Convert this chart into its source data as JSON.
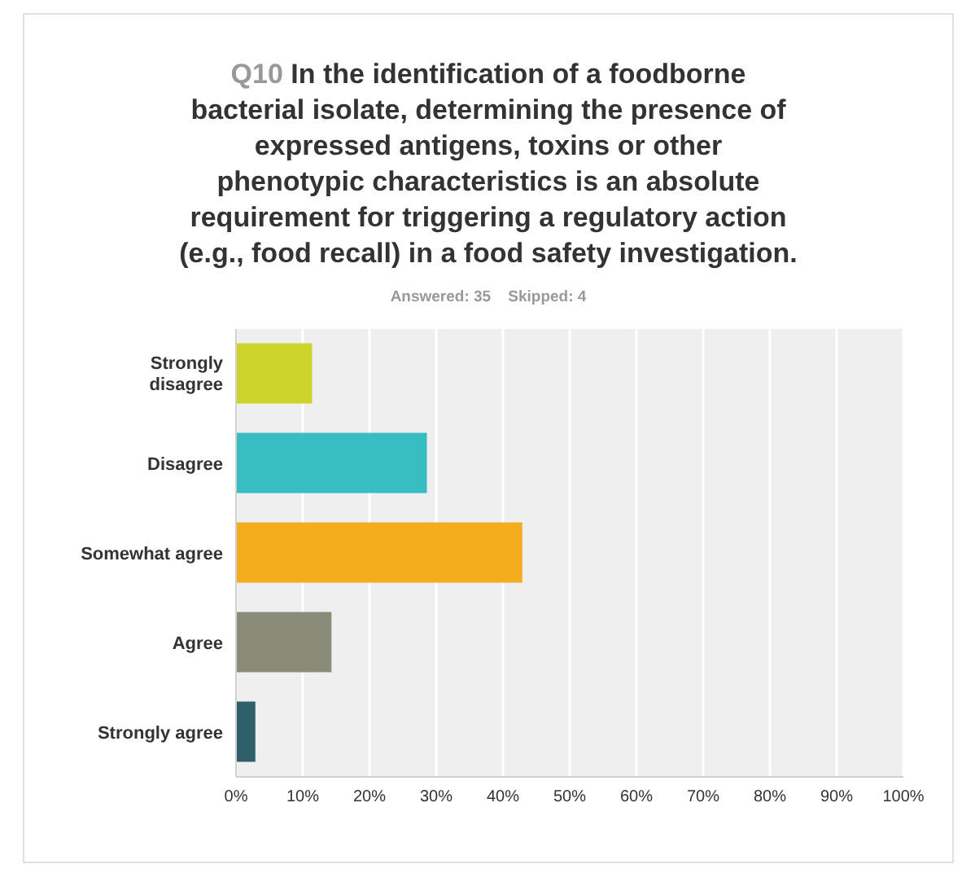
{
  "chart_data": {
    "type": "bar",
    "orientation": "horizontal",
    "title": "Q10 In the identification of a foodborne bacterial isolate, determining the presence of expressed antigens, toxins or other phenotypic characteristics is an absolute requirement for triggering a regulatory action (e.g., food recall) in a food safety investigation.",
    "subtitle": "Answered: 35    Skipped: 4",
    "categories": [
      "Strongly disagree",
      "Disagree",
      "Somewhat agree",
      "Agree",
      "Strongly agree"
    ],
    "values": [
      11.4,
      28.6,
      42.9,
      14.3,
      2.9
    ],
    "colors": [
      "#cdd42c",
      "#38bec2",
      "#f4ae1d",
      "#8a8b79",
      "#2f5f6b"
    ],
    "xlim": [
      0,
      100
    ],
    "xticks": [
      {
        "value": 0,
        "label": "0%"
      },
      {
        "value": 10,
        "label": "10%"
      },
      {
        "value": 20,
        "label": "20%"
      },
      {
        "value": 30,
        "label": "30%"
      },
      {
        "value": 40,
        "label": "40%"
      },
      {
        "value": 50,
        "label": "50%"
      },
      {
        "value": 60,
        "label": "60%"
      },
      {
        "value": 70,
        "label": "70%"
      },
      {
        "value": 80,
        "label": "80%"
      },
      {
        "value": 90,
        "label": "90%"
      },
      {
        "value": 100,
        "label": "100%"
      }
    ],
    "grid": "x"
  }
}
